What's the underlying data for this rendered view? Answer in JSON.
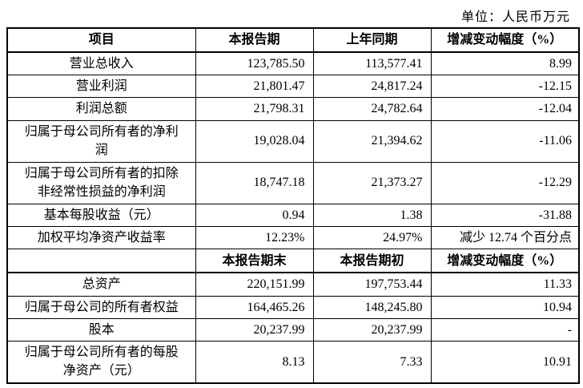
{
  "page": {
    "unit_label": "单位：人民币万元"
  },
  "colors": {
    "background": "#ffffff",
    "border": "#000000",
    "text": "#000000"
  },
  "table": {
    "section1": {
      "header": {
        "item": "项目",
        "col_current": "本报告期",
        "col_prior": "上年同期",
        "col_change": "增减变动幅度（%）"
      },
      "rows": [
        {
          "label": "营业总收入",
          "current": "123,785.50",
          "prior": "113,577.41",
          "change": "8.99"
        },
        {
          "label": "营业利润",
          "current": "21,801.47",
          "prior": "24,817.24",
          "change": "-12.15"
        },
        {
          "label": "利润总额",
          "current": "21,798.31",
          "prior": "24,782.64",
          "change": "-12.04"
        },
        {
          "label": "归属于母公司所有者的净利润",
          "current": "19,028.04",
          "prior": "21,394.62",
          "change": "-11.06"
        },
        {
          "label": "归属于母公司所有者的扣除非经常性损益的净利润",
          "current": "18,747.18",
          "prior": "21,373.27",
          "change": "-12.29"
        },
        {
          "label": "基本每股收益（元）",
          "current": "0.94",
          "prior": "1.38",
          "change": "-31.88"
        },
        {
          "label": "加权平均净资产收益率",
          "current": "12.23%",
          "prior": "24.97%",
          "change": "减少 12.74 个百分点"
        }
      ]
    },
    "section2": {
      "header": {
        "item": "",
        "col_current": "本报告期末",
        "col_prior": "本报告期初",
        "col_change": "增减变动幅度（%）"
      },
      "rows": [
        {
          "label": "总资产",
          "current": "220,151.99",
          "prior": "197,753.44",
          "change": "11.33"
        },
        {
          "label": "归属于母公司的所有者权益",
          "current": "164,465.26",
          "prior": "148,245.80",
          "change": "10.94"
        },
        {
          "label": "股本",
          "current": "20,237.99",
          "prior": "20,237.99",
          "change": "-"
        },
        {
          "label": "归属于母公司所有者的每股净资产（元）",
          "current": "8.13",
          "prior": "7.33",
          "change": "10.91"
        }
      ]
    }
  }
}
